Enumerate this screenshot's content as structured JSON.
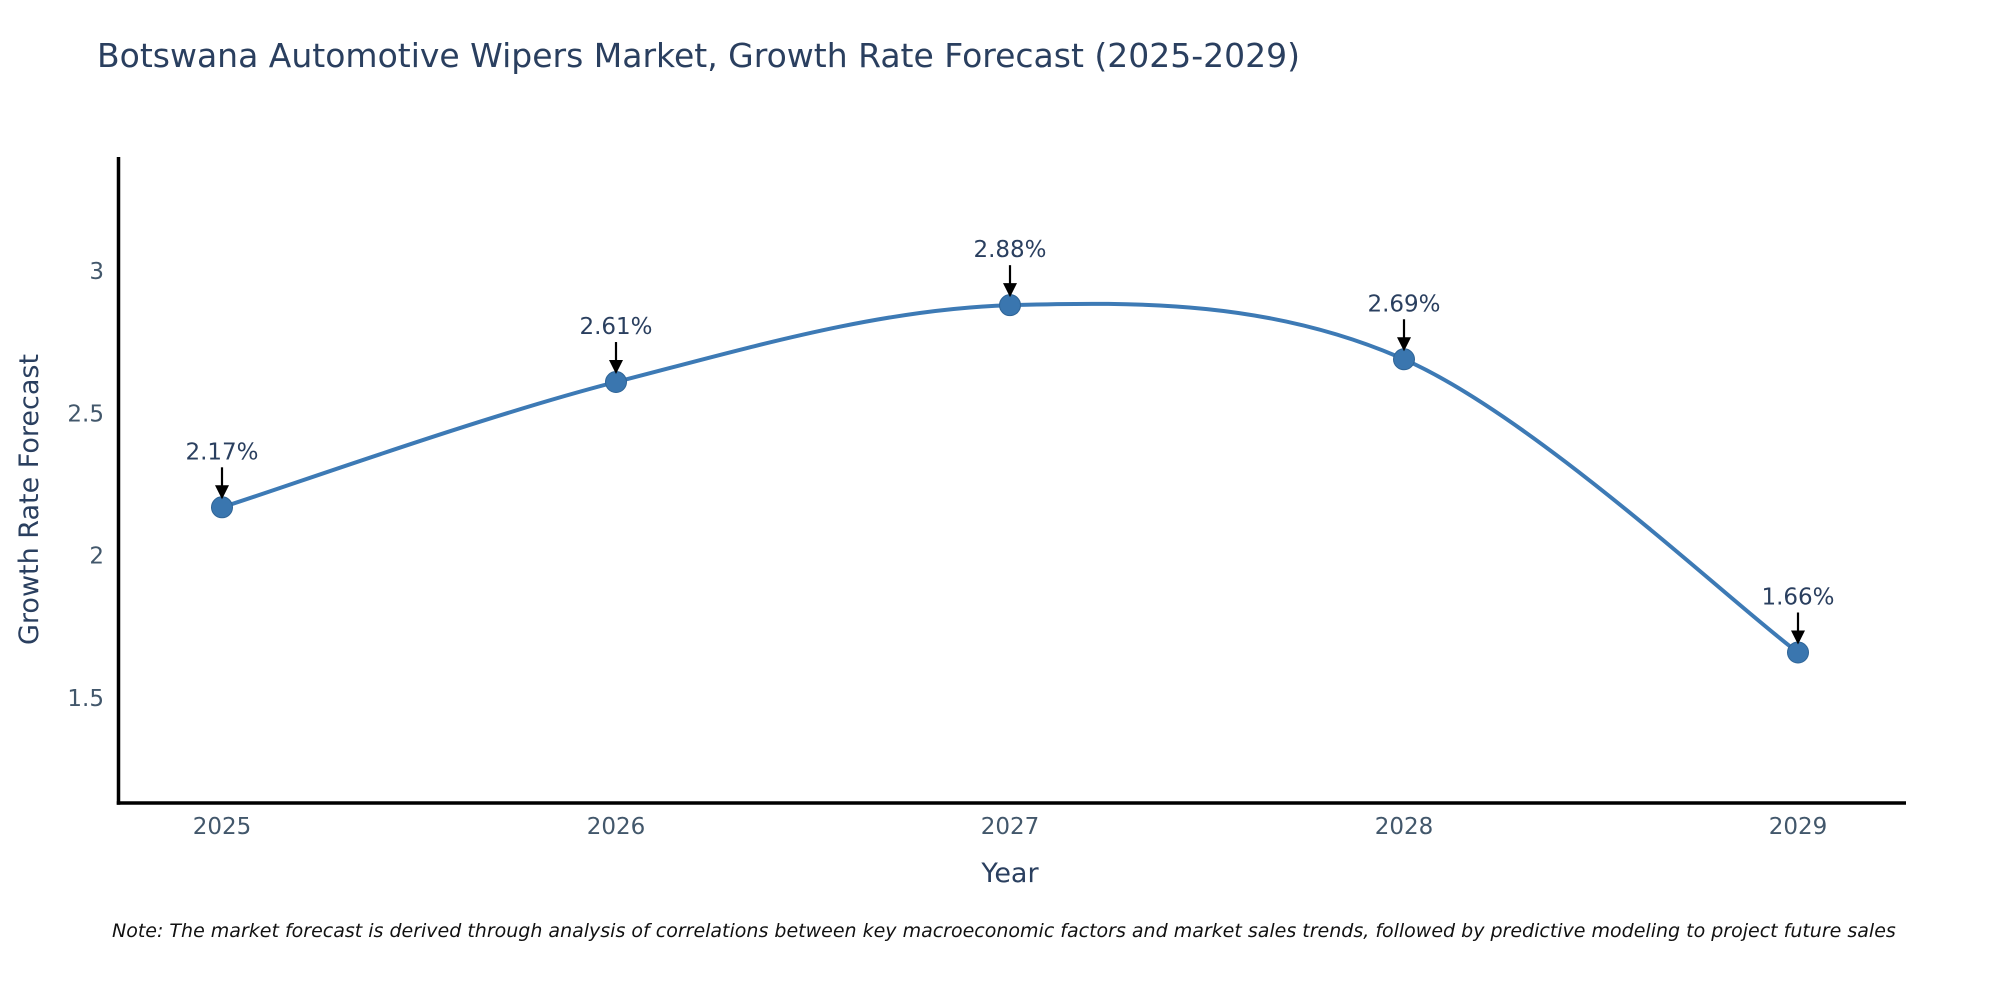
{
  "page": {
    "title": "Botswana Automotive Wipers Market, Growth Rate Forecast (2025-2029)",
    "note": "Note: The market forecast is derived through analysis of correlations between key macroeconomic factors and market sales trends, followed by predictive modeling to project future sales"
  },
  "colors": {
    "background": "#ffffff",
    "title_text": "#2a3f5f",
    "tick_text": "#42576b",
    "annotation_text": "#2a3f5f",
    "axis_line": "#000000",
    "arrow": "#000000",
    "series_line": "#3d7ab5",
    "marker_fill": "#3a76af",
    "marker_edge": "#2f6496"
  },
  "chart_data": {
    "type": "line",
    "title": "Botswana Automotive Wipers Market, Growth Rate Forecast (2025-2029)",
    "xlabel": "Year",
    "ylabel": "Growth Rate Forecast",
    "categories": [
      "2025",
      "2026",
      "2027",
      "2028",
      "2029"
    ],
    "values": [
      2.17,
      2.61,
      2.88,
      2.69,
      1.66
    ],
    "point_labels": [
      "2.17%",
      "2.61%",
      "2.88%",
      "2.69%",
      "1.66%"
    ],
    "series_name": "Growth Rate Forecast",
    "ytick_labels": [
      "3",
      "2.5",
      "2",
      "1.5"
    ],
    "yticks": [
      3,
      2.5,
      2,
      1.5
    ],
    "ylim": [
      1.13,
      3.39
    ],
    "grid": false,
    "legend": "none",
    "line_shape": "spline",
    "annotation_style": "value label with downward black arrow above each point"
  }
}
